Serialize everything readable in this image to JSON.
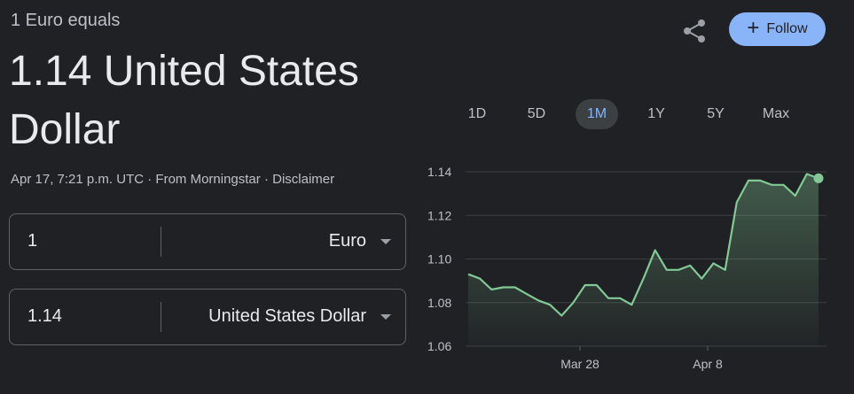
{
  "header": {
    "subtitle": "1 Euro equals",
    "rate": "1.14 United States Dollar",
    "timestamp": "Apr 17, 7:21 p.m. UTC",
    "sep1": "·",
    "source": "From Morningstar",
    "sep2": "·",
    "disclaimer": "Disclaimer"
  },
  "actions": {
    "share_icon": "share-icon",
    "follow_label": "Follow",
    "follow_icon": "+"
  },
  "converter": {
    "from": {
      "value": "1",
      "unit": "Euro"
    },
    "to": {
      "value": "1.14",
      "unit": "United States Dollar"
    }
  },
  "ranges": {
    "items": [
      "1D",
      "5D",
      "1M",
      "1Y",
      "5Y",
      "Max"
    ],
    "selected": "1M"
  },
  "colors": {
    "line": "#81c995",
    "accent": "#8ab4f8",
    "background": "#202124"
  },
  "chart_data": {
    "type": "area",
    "y_ticks": [
      "1.14",
      "1.12",
      "1.10",
      "1.08",
      "1.06"
    ],
    "x_ticks": [
      "Mar 28",
      "Apr 8"
    ],
    "ylim": [
      1.06,
      1.14
    ],
    "grid": true,
    "series": [
      {
        "values": [
          1.093,
          1.091,
          1.086,
          1.087,
          1.087,
          1.084,
          1.081,
          1.079,
          1.074,
          1.08,
          1.088,
          1.088,
          1.082,
          1.082,
          1.079,
          1.091,
          1.104,
          1.095,
          1.095,
          1.097,
          1.091,
          1.098,
          1.095,
          1.126,
          1.136,
          1.136,
          1.134,
          1.134,
          1.129,
          1.139,
          1.137
        ]
      }
    ]
  }
}
